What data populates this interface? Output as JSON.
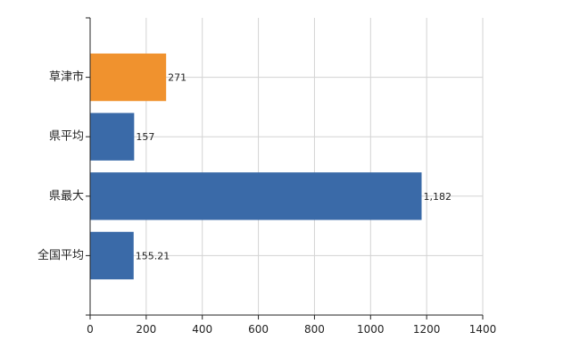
{
  "chart_data": {
    "type": "bar",
    "orientation": "horizontal",
    "categories": [
      "草津市",
      "県平均",
      "県最大",
      "全国平均"
    ],
    "values": [
      271,
      157,
      1182,
      155.21
    ],
    "data_labels": [
      "271",
      "157",
      "1,182",
      "155.21"
    ],
    "colors": [
      "#f0922e",
      "#3a6aa8",
      "#3a6aa8",
      "#3a6aa8"
    ],
    "xlim": [
      0,
      1400
    ],
    "xticks": [
      0,
      200,
      400,
      600,
      800,
      1000,
      1200,
      1400
    ],
    "grid": true,
    "legend": "none",
    "title": "",
    "xlabel": "",
    "ylabel": ""
  }
}
